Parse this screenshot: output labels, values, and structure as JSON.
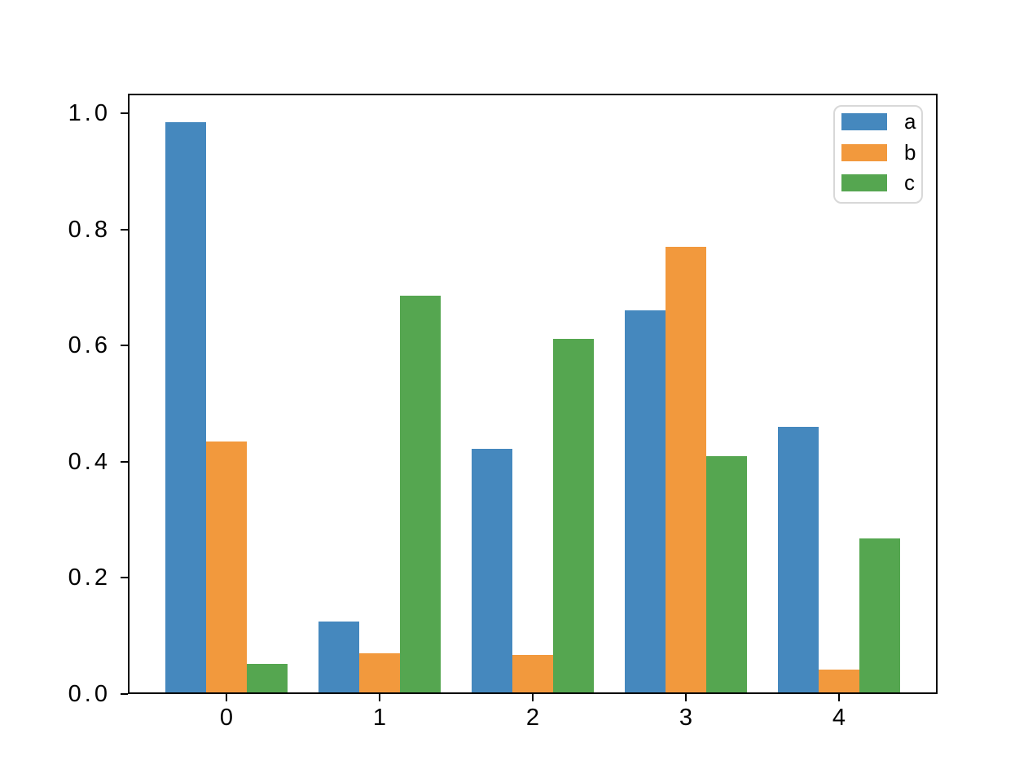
{
  "figure": {
    "background": "#ffffff",
    "axis_color": "#000000",
    "text_color": "#000000"
  },
  "chart_data": {
    "type": "bar",
    "title": "",
    "xlabel": "",
    "ylabel": "",
    "categories": [
      "0",
      "1",
      "2",
      "3",
      "4"
    ],
    "series": [
      {
        "name": "a",
        "color": "#4588BE",
        "values": [
          0.985,
          0.125,
          0.422,
          0.66,
          0.46
        ]
      },
      {
        "name": "b",
        "color": "#F2993D",
        "values": [
          0.435,
          0.07,
          0.067,
          0.77,
          0.042
        ]
      },
      {
        "name": "c",
        "color": "#55A650",
        "values": [
          0.052,
          0.686,
          0.611,
          0.41,
          0.268
        ]
      }
    ],
    "ylim": [
      0,
      1.034
    ],
    "yticks": {
      "values": [
        0.0,
        0.2,
        0.4,
        0.6,
        0.8,
        1.0
      ],
      "labels": [
        "0.0",
        "0.2",
        "0.4",
        "0.6",
        "0.8",
        "1.0"
      ]
    },
    "grid": false,
    "bar_group_fraction": 0.8,
    "legend": {
      "position": "upper right",
      "entries": [
        {
          "label": "a",
          "color": "#4588BE"
        },
        {
          "label": "b",
          "color": "#F2993D"
        },
        {
          "label": "c",
          "color": "#55A650"
        }
      ]
    }
  }
}
